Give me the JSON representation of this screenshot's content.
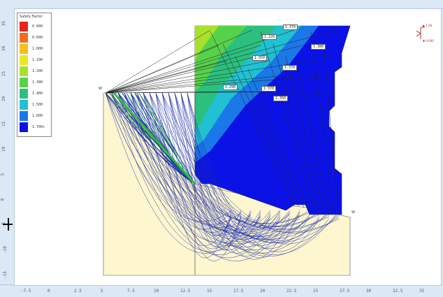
{
  "legend": {
    "title": "Safety Factor",
    "items": [
      {
        "value": "0.000",
        "color": "#e8231c"
      },
      {
        "value": "0.600",
        "color": "#f26c21"
      },
      {
        "value": "1.000",
        "color": "#f3c01e"
      },
      {
        "value": "1.100",
        "color": "#e8e82a"
      },
      {
        "value": "1.200",
        "color": "#a8e12c"
      },
      {
        "value": "1.300",
        "color": "#56d24a"
      },
      {
        "value": "1.400",
        "color": "#2bc07d"
      },
      {
        "value": "1.500",
        "color": "#21c0d2"
      },
      {
        "value": "1.600",
        "color": "#1a78e8"
      },
      {
        "value": "1.700+",
        "color": "#1010e0"
      }
    ]
  },
  "contours": [
    {
      "label": "1.370"
    },
    {
      "label": "1.220"
    },
    {
      "label": "1.650"
    },
    {
      "label": "1.370"
    },
    {
      "label": "1.380"
    },
    {
      "label": "1.290"
    },
    {
      "label": "1.370"
    },
    {
      "label": "1.350"
    }
  ],
  "corners": {
    "left": "W",
    "right": "W"
  },
  "mini_icon": {
    "top_label": "▶ 1.00",
    "bottom_label": "▼ 0.000"
  },
  "ruler_bottom": [
    "-7.5",
    "0",
    "2.5",
    "5",
    "7.5",
    "10",
    "12.5",
    "15",
    "17.5",
    "20",
    "22.5",
    "25",
    "27.5",
    "30",
    "32.5",
    "35"
  ],
  "ruler_left": [
    "35",
    "30",
    "25",
    "20",
    "15",
    "10",
    "5",
    "0",
    "-5",
    "-10",
    "-15"
  ],
  "colors": {
    "soil": "#fdf6cf",
    "grid_blue": "#0b12e6",
    "slip_lines": "#1a2aa8",
    "top_slip_green": "#2fbe3a"
  }
}
